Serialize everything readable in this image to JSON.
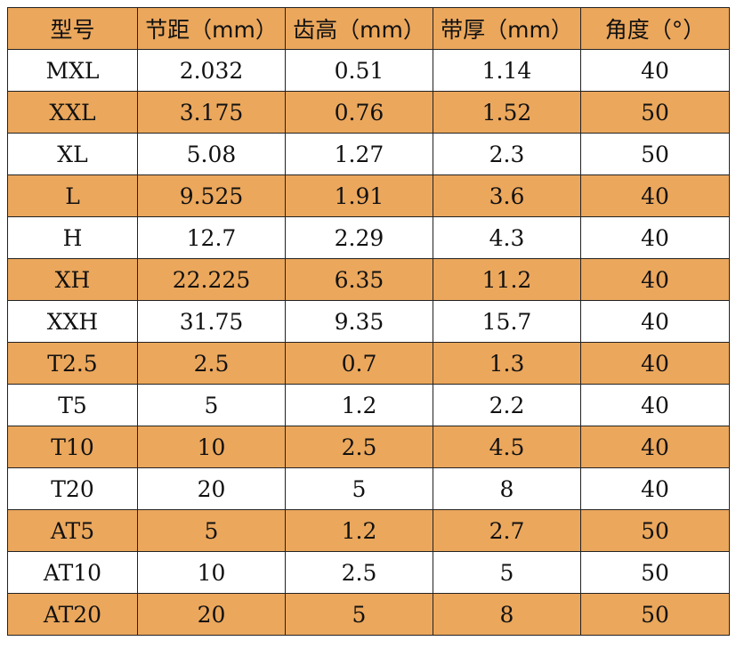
{
  "table": {
    "headers": [
      "型号",
      "节距（mm）",
      "齿高（mm）",
      "带厚（mm）",
      "角度（°）"
    ],
    "rows": [
      [
        "MXL",
        "2.032",
        "0.51",
        "1.14",
        "40"
      ],
      [
        "XXL",
        "3.175",
        "0.76",
        "1.52",
        "50"
      ],
      [
        "XL",
        "5.08",
        "1.27",
        "2.3",
        "50"
      ],
      [
        "L",
        "9.525",
        "1.91",
        "3.6",
        "40"
      ],
      [
        "H",
        "12.7",
        "2.29",
        "4.3",
        "40"
      ],
      [
        "XH",
        "22.225",
        "6.35",
        "11.2",
        "40"
      ],
      [
        "XXH",
        "31.75",
        "9.35",
        "15.7",
        "40"
      ],
      [
        "T2.5",
        "2.5",
        "0.7",
        "1.3",
        "40"
      ],
      [
        "T5",
        "5",
        "1.2",
        "2.2",
        "40"
      ],
      [
        "T10",
        "10",
        "2.5",
        "4.5",
        "40"
      ],
      [
        "T20",
        "20",
        "5",
        "8",
        "40"
      ],
      [
        "AT5",
        "5",
        "1.2",
        "2.7",
        "50"
      ],
      [
        "AT10",
        "10",
        "2.5",
        "5",
        "50"
      ],
      [
        "AT20",
        "20",
        "5",
        "8",
        "50"
      ]
    ]
  },
  "colors": {
    "stripe": "#EBA75C",
    "plain": "#FFFFFF",
    "border": "#222222"
  }
}
